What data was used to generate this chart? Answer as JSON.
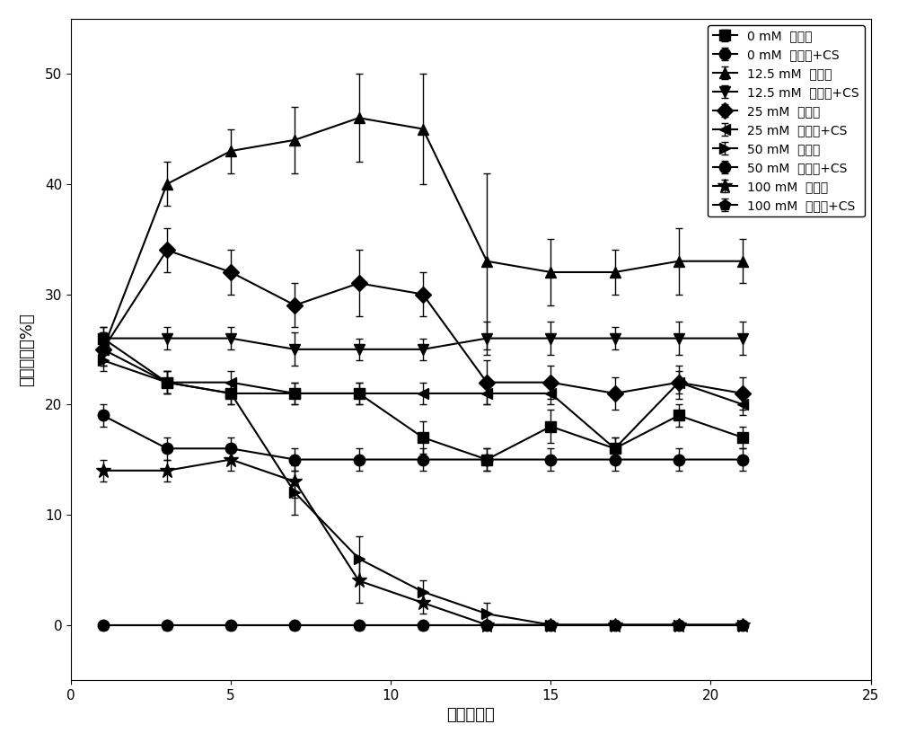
{
  "title": "",
  "xlabel": "时间（天）",
  "ylabel": "氧气含量（%）",
  "xlim": [
    0,
    25
  ],
  "ylim": [
    -5,
    55
  ],
  "xticks": [
    0,
    5,
    10,
    15,
    20,
    25
  ],
  "yticks": [
    0,
    10,
    20,
    30,
    40,
    50
  ],
  "series": [
    {
      "label": "0 mM  葡萄糖",
      "marker": "s",
      "x": [
        1,
        3,
        5,
        7,
        9,
        11,
        13,
        15,
        17,
        19,
        21
      ],
      "y": [
        26,
        22,
        21,
        21,
        21,
        17,
        15,
        18,
        16,
        19,
        17
      ],
      "yerr": [
        1,
        1,
        1,
        1,
        1,
        1.5,
        1,
        1.5,
        1,
        1,
        1
      ]
    },
    {
      "label": "0 mM  葡萄糖+CS",
      "marker": "o",
      "x": [
        1,
        3,
        5,
        7,
        9,
        11,
        13,
        15,
        17,
        19,
        21
      ],
      "y": [
        0,
        0,
        0,
        0,
        0,
        0,
        0,
        0,
        0,
        0,
        0
      ],
      "yerr": [
        0,
        0,
        0,
        0,
        0,
        0,
        0,
        0,
        0,
        0,
        0
      ]
    },
    {
      "label": "12.5 mM  葡萄糖",
      "marker": "^",
      "x": [
        1,
        3,
        5,
        7,
        9,
        11,
        13,
        15,
        17,
        19,
        21
      ],
      "y": [
        25,
        40,
        43,
        44,
        46,
        45,
        33,
        32,
        32,
        33,
        33
      ],
      "yerr": [
        1.5,
        2,
        2,
        3,
        4,
        5,
        8,
        3,
        2,
        3,
        2
      ]
    },
    {
      "label": "12.5 mM  葡萄糖+CS",
      "marker": "v",
      "x": [
        1,
        3,
        5,
        7,
        9,
        11,
        13,
        15,
        17,
        19,
        21
      ],
      "y": [
        26,
        26,
        26,
        25,
        25,
        25,
        26,
        26,
        26,
        26,
        26
      ],
      "yerr": [
        1,
        1,
        1,
        1.5,
        1,
        1,
        1.5,
        1.5,
        1,
        1.5,
        1.5
      ]
    },
    {
      "label": "25 mM  葡萄糖",
      "marker": "D",
      "x": [
        1,
        3,
        5,
        7,
        9,
        11,
        13,
        15,
        17,
        19,
        21
      ],
      "y": [
        25,
        34,
        32,
        29,
        31,
        30,
        22,
        22,
        21,
        22,
        21
      ],
      "yerr": [
        1.5,
        2,
        2,
        2,
        3,
        2,
        2,
        1.5,
        1.5,
        1.5,
        1.5
      ]
    },
    {
      "label": "25 mM  葡萄糖+CS",
      "marker": "<",
      "x": [
        1,
        3,
        5,
        7,
        9,
        11,
        13,
        15,
        17,
        19,
        21
      ],
      "y": [
        25,
        22,
        22,
        21,
        21,
        21,
        21,
        21,
        16,
        22,
        20
      ],
      "yerr": [
        1,
        1,
        1,
        1,
        1,
        1,
        1,
        1,
        1,
        1,
        1
      ]
    },
    {
      "label": "50 mM  葡萄糖",
      "marker": ">",
      "x": [
        1,
        3,
        5,
        7,
        9,
        11,
        13,
        15,
        17,
        19,
        21
      ],
      "y": [
        24,
        22,
        21,
        12,
        6,
        3,
        1,
        0,
        0,
        0,
        0
      ],
      "yerr": [
        1,
        1,
        1,
        2,
        2,
        1,
        1,
        0,
        0,
        0,
        0
      ]
    },
    {
      "label": "50 mM  葡萄糖+CS",
      "marker": "o",
      "x": [
        1,
        3,
        5,
        7,
        9,
        11,
        13,
        15,
        17,
        19,
        21
      ],
      "y": [
        19,
        16,
        16,
        15,
        15,
        15,
        15,
        15,
        15,
        15,
        15
      ],
      "yerr": [
        1,
        1,
        1,
        1,
        1,
        1,
        1,
        1,
        1,
        1,
        1
      ]
    },
    {
      "label": "100 mM  葡萄糖",
      "marker": "*",
      "x": [
        1,
        3,
        5,
        7,
        9,
        11,
        13,
        15,
        17,
        19,
        21
      ],
      "y": [
        14,
        14,
        15,
        13,
        4,
        2,
        0,
        0,
        0,
        0,
        0
      ],
      "yerr": [
        1,
        1,
        1,
        1.5,
        2,
        1,
        0,
        0,
        0,
        0,
        0
      ]
    },
    {
      "label": "100 mM  葡萄糖+CS",
      "marker": "p",
      "x": [
        1,
        3,
        5,
        7,
        9,
        11,
        13,
        15,
        17,
        19,
        21
      ],
      "y": [
        0,
        0,
        0,
        0,
        0,
        0,
        0,
        0,
        0,
        0,
        0
      ],
      "yerr": [
        0,
        0,
        0,
        0,
        0,
        0,
        0,
        0,
        0,
        0,
        0
      ]
    }
  ],
  "color": "black",
  "markersize": 8,
  "linewidth": 1.5,
  "capsize": 3,
  "legend_fontsize": 10,
  "axis_fontsize": 13,
  "tick_fontsize": 11
}
